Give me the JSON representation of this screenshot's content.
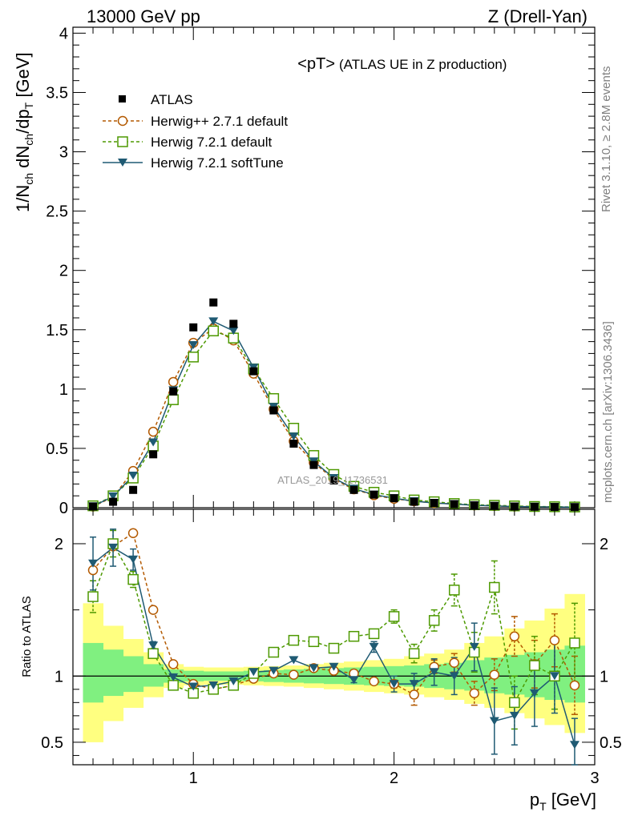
{
  "header": {
    "left": "13000 GeV pp",
    "right": "Z (Drell-Yan)"
  },
  "side_labels": {
    "rivet": "Rivet 3.1.10, ≥ 2.8M events",
    "mcplots": "mcplots.cern.ch [arXiv:1306.3436]"
  },
  "watermark": "ATLAS_2019_I1736531",
  "colors": {
    "atlas": "#000000",
    "herwigpp": "#b35900",
    "herwig_default": "#4d9900",
    "herwig_soft": "#1f5a73",
    "band_green": "#80f080",
    "band_yellow": "#ffff80"
  },
  "chart_data": [
    {
      "type": "scatter",
      "title": "<pT>",
      "subtitle": "(ATLAS UE in Z production)",
      "ylabel_main": "1/N",
      "ylabel_sub1": "ch",
      "ylabel_mid": " dN",
      "ylabel_sub2": "ch",
      "ylabel_tail": "/dp",
      "ylabel_sub3": "T",
      "ylabel_unit": " [GeV]",
      "xlim": [
        0.4,
        3.0
      ],
      "ylim": [
        0,
        4.05
      ],
      "yticks": [
        "0",
        "0.5",
        "1",
        "1.5",
        "2",
        "2.5",
        "3",
        "3.5",
        "4"
      ],
      "x": [
        0.5,
        0.6,
        0.7,
        0.8,
        0.9,
        1.0,
        1.1,
        1.2,
        1.3,
        1.4,
        1.5,
        1.6,
        1.7,
        1.8,
        1.9,
        2.0,
        2.1,
        2.2,
        2.3,
        2.4,
        2.5,
        2.6,
        2.7,
        2.8,
        2.9
      ],
      "series": [
        {
          "name": "ATLAS",
          "marker": "square-filled",
          "values": [
            0.01,
            0.05,
            0.15,
            0.45,
            0.98,
            1.52,
            1.73,
            1.55,
            1.15,
            0.82,
            0.54,
            0.36,
            0.23,
            0.15,
            0.11,
            0.08,
            0.05,
            0.04,
            0.03,
            0.02,
            0.015,
            0.01,
            0.008,
            0.006,
            0.005
          ]
        },
        {
          "name": "Herwig++ 2.7.1 default",
          "marker": "circle-open",
          "values": [
            0.01,
            0.09,
            0.31,
            0.64,
            1.06,
            1.39,
            1.51,
            1.41,
            1.13,
            0.83,
            0.56,
            0.38,
            0.24,
            0.155,
            0.105,
            0.075,
            0.055,
            0.04,
            0.03,
            0.02,
            0.015,
            0.01,
            0.008,
            0.006,
            0.005
          ]
        },
        {
          "name": "Herwig 7.2.1 default",
          "marker": "square-open",
          "values": [
            0.016,
            0.1,
            0.25,
            0.52,
            0.91,
            1.27,
            1.49,
            1.43,
            1.17,
            0.92,
            0.67,
            0.44,
            0.28,
            0.18,
            0.13,
            0.1,
            0.065,
            0.05,
            0.035,
            0.025,
            0.02,
            0.015,
            0.01,
            0.008,
            0.006
          ]
        },
        {
          "name": "Herwig 7.2.1 softTune",
          "marker": "triangle-down-filled",
          "values": [
            0.012,
            0.095,
            0.27,
            0.55,
            0.99,
            1.37,
            1.57,
            1.49,
            1.18,
            0.85,
            0.6,
            0.39,
            0.25,
            0.16,
            0.11,
            0.08,
            0.055,
            0.04,
            0.03,
            0.02,
            0.015,
            0.01,
            0.008,
            0.006,
            0.004
          ]
        }
      ]
    },
    {
      "type": "scatter",
      "ylabel": "Ratio to ATLAS",
      "xlabel": "p",
      "xlabel_sub": "T",
      "xlabel_unit": " [GeV]",
      "xlim": [
        0.4,
        3.0
      ],
      "ylim": [
        0.33,
        2.26
      ],
      "xticks": [
        "1",
        "2",
        "3"
      ],
      "yticks": [
        "0.5",
        "1",
        "2"
      ],
      "x": [
        0.5,
        0.6,
        0.7,
        0.8,
        0.9,
        1.0,
        1.1,
        1.2,
        1.3,
        1.4,
        1.5,
        1.6,
        1.7,
        1.8,
        1.9,
        2.0,
        2.1,
        2.2,
        2.3,
        2.4,
        2.5,
        2.6,
        2.7,
        2.8,
        2.9
      ],
      "band_inner": [
        [
          0.5,
          0.8,
          1.25
        ],
        [
          0.6,
          0.85,
          1.2
        ],
        [
          0.7,
          0.88,
          1.15
        ],
        [
          0.8,
          0.92,
          1.09
        ],
        [
          0.9,
          0.95,
          1.05
        ],
        [
          1.0,
          0.96,
          1.04
        ],
        [
          1.1,
          0.965,
          1.035
        ],
        [
          1.2,
          0.965,
          1.035
        ],
        [
          1.3,
          0.96,
          1.04
        ],
        [
          1.4,
          0.955,
          1.045
        ],
        [
          1.5,
          0.95,
          1.05
        ],
        [
          1.6,
          0.945,
          1.055
        ],
        [
          1.7,
          0.94,
          1.06
        ],
        [
          1.8,
          0.935,
          1.065
        ],
        [
          1.9,
          0.93,
          1.07
        ],
        [
          2.0,
          0.925,
          1.075
        ],
        [
          2.1,
          0.92,
          1.08
        ],
        [
          2.2,
          0.91,
          1.09
        ],
        [
          2.3,
          0.9,
          1.1
        ],
        [
          2.4,
          0.89,
          1.12
        ],
        [
          2.5,
          0.87,
          1.14
        ],
        [
          2.6,
          0.86,
          1.16
        ],
        [
          2.7,
          0.84,
          1.18
        ],
        [
          2.8,
          0.82,
          1.2
        ],
        [
          2.9,
          0.8,
          1.23
        ]
      ],
      "band_outer": [
        [
          0.5,
          0.5,
          1.55
        ],
        [
          0.6,
          0.66,
          1.38
        ],
        [
          0.7,
          0.76,
          1.28
        ],
        [
          0.8,
          0.84,
          1.18
        ],
        [
          0.9,
          0.91,
          1.09
        ],
        [
          1.0,
          0.93,
          1.07
        ],
        [
          1.1,
          0.935,
          1.065
        ],
        [
          1.2,
          0.935,
          1.065
        ],
        [
          1.3,
          0.93,
          1.07
        ],
        [
          1.4,
          0.925,
          1.075
        ],
        [
          1.5,
          0.92,
          1.08
        ],
        [
          1.6,
          0.91,
          1.09
        ],
        [
          1.7,
          0.9,
          1.1
        ],
        [
          1.8,
          0.89,
          1.11
        ],
        [
          1.9,
          0.88,
          1.12
        ],
        [
          2.0,
          0.87,
          1.13
        ],
        [
          2.1,
          0.86,
          1.15
        ],
        [
          2.2,
          0.84,
          1.17
        ],
        [
          2.3,
          0.82,
          1.2
        ],
        [
          2.4,
          0.79,
          1.25
        ],
        [
          2.5,
          0.76,
          1.3
        ],
        [
          2.6,
          0.72,
          1.36
        ],
        [
          2.7,
          0.68,
          1.42
        ],
        [
          2.8,
          0.63,
          1.51
        ],
        [
          2.9,
          0.57,
          1.62
        ]
      ],
      "series": [
        {
          "name": "Herwig++ 2.7.1 default",
          "values": [
            1.8,
            1.98,
            2.08,
            1.5,
            1.09,
            0.94,
            0.9,
            0.93,
            0.98,
            1.02,
            1.01,
            1.06,
            1.04,
            1.02,
            0.96,
            0.94,
            0.86,
            1.07,
            1.1,
            0.87,
            1.01,
            1.3,
            1.09,
            1.27,
            0.93
          ],
          "errors": [
            0,
            0,
            0,
            0,
            0,
            0,
            0,
            0,
            0,
            0,
            0,
            0,
            0,
            0,
            0.02,
            0.03,
            0.08,
            0.05,
            0.07,
            0.09,
            0.12,
            0.15,
            0.18,
            0.2,
            0.22
          ]
        },
        {
          "name": "Herwig 7.2.1 default",
          "values": [
            1.6,
            2.0,
            1.73,
            1.17,
            0.93,
            0.87,
            0.9,
            0.93,
            1.02,
            1.18,
            1.27,
            1.26,
            1.21,
            1.3,
            1.32,
            1.45,
            1.17,
            1.42,
            1.65,
            1.18,
            1.67,
            0.8,
            1.08,
            1.0,
            1.25
          ],
          "errors": [
            0.12,
            0.1,
            0.06,
            0.02,
            0,
            0,
            0,
            0,
            0,
            0,
            0,
            0,
            0,
            0.02,
            0.03,
            0.05,
            0.07,
            0.08,
            0.12,
            0.15,
            0.2,
            0.2,
            0.22,
            0.25,
            0.3
          ]
        },
        {
          "name": "Herwig 7.2.1 softTune",
          "values": [
            1.85,
            1.97,
            1.88,
            1.23,
            0.99,
            0.92,
            0.93,
            0.96,
            1.03,
            1.04,
            1.12,
            1.06,
            1.07,
            0.97,
            1.22,
            0.94,
            0.94,
            1.03,
            1.0,
            1.22,
            0.66,
            0.7,
            0.87,
            1.0,
            0.48
          ],
          "errors": [
            0.2,
            0.14,
            0.08,
            0.03,
            0,
            0,
            0,
            0,
            0,
            0,
            0,
            0,
            0,
            0.02,
            0.04,
            0.06,
            0.08,
            0.1,
            0.14,
            0.18,
            0.25,
            0.22,
            0.25,
            0.28,
            0.2
          ]
        }
      ]
    }
  ]
}
